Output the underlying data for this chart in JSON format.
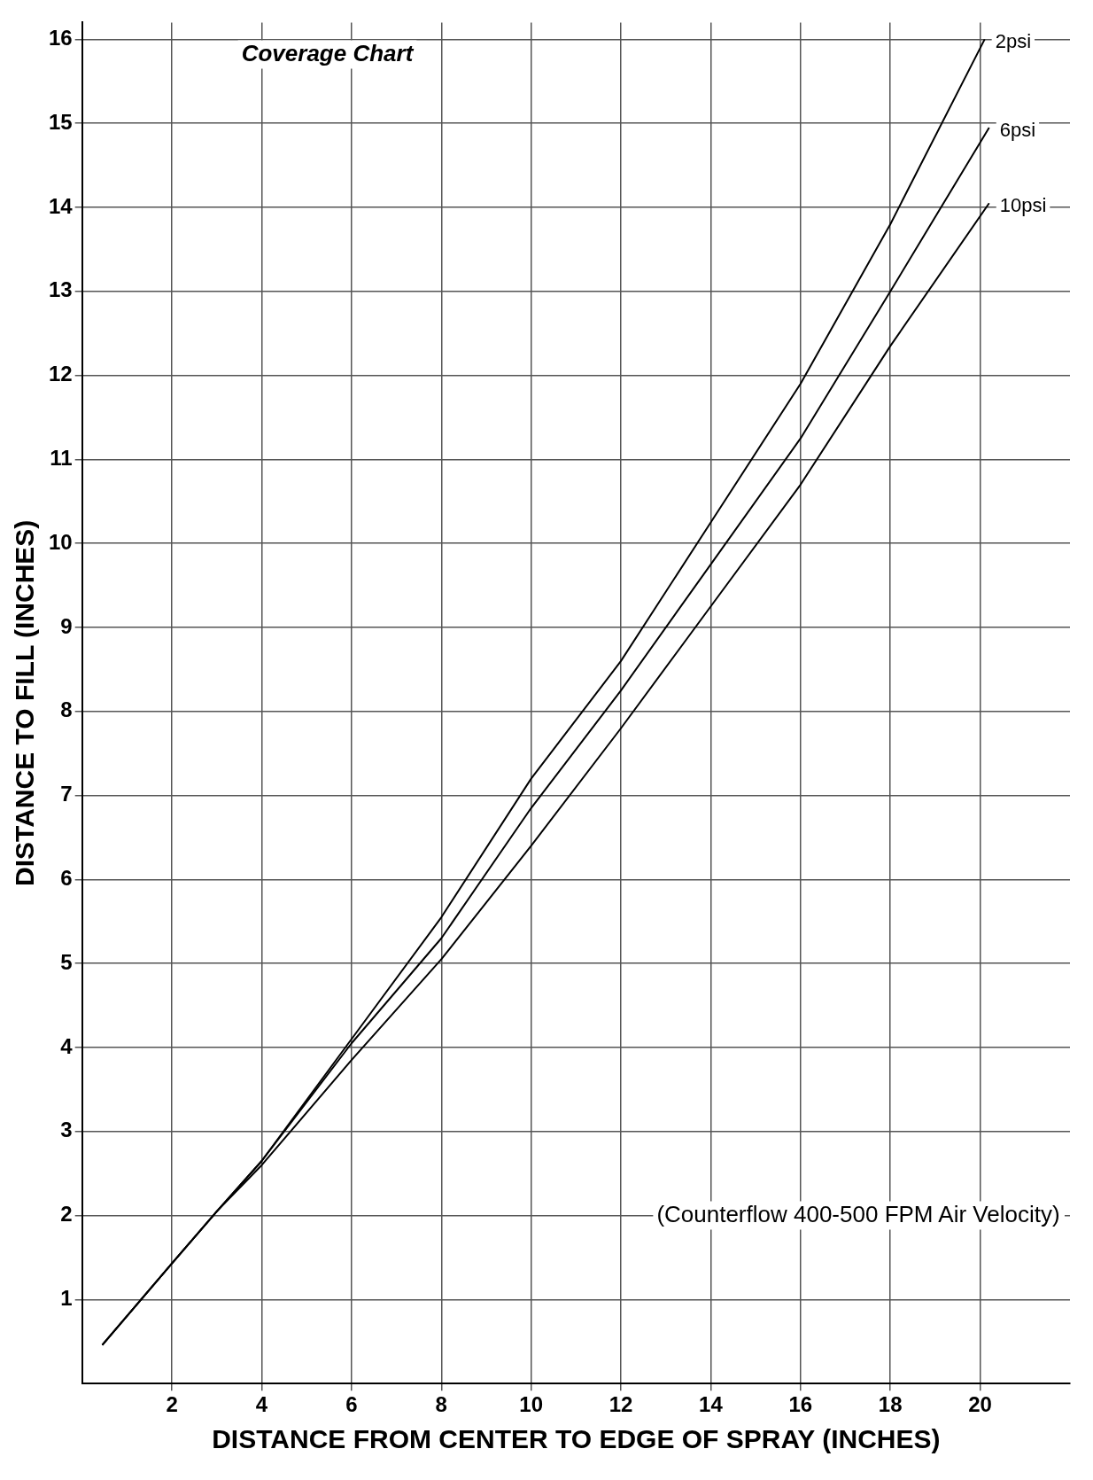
{
  "chart_data": {
    "type": "line",
    "title": "Coverage Chart",
    "xlabel": "DISTANCE FROM CENTER TO EDGE OF SPRAY (INCHES)",
    "ylabel": "DISTANCE TO FILL (INCHES)",
    "annotations": [
      "(Counterflow 400-500 FPM Air Velocity)"
    ],
    "xlim": [
      0,
      22
    ],
    "ylim": [
      0,
      16.2
    ],
    "xticks": [
      2,
      4,
      6,
      8,
      10,
      12,
      14,
      16,
      18,
      20
    ],
    "yticks": [
      1,
      2,
      3,
      4,
      5,
      6,
      7,
      8,
      9,
      10,
      11,
      12,
      13,
      14,
      15,
      16
    ],
    "grid": true,
    "legend": false,
    "marker": "none",
    "line_style": "solid",
    "series": [
      {
        "name": "2psi",
        "color": "#000000",
        "x": [
          0.45,
          2,
          3,
          4,
          6,
          8,
          10,
          12,
          14,
          16,
          18,
          20.1
        ],
        "values": [
          0.46,
          1.43,
          2.05,
          2.65,
          4.1,
          5.55,
          7.2,
          8.6,
          10.25,
          11.9,
          13.8,
          16.0
        ]
      },
      {
        "name": "6psi",
        "color": "#000000",
        "x": [
          0.45,
          2,
          3,
          4,
          6,
          8,
          10,
          12,
          14,
          16,
          18,
          20.2
        ],
        "values": [
          0.46,
          1.43,
          2.05,
          2.65,
          4.05,
          5.3,
          6.85,
          8.25,
          9.75,
          11.25,
          13.0,
          14.95
        ]
      },
      {
        "name": "10psi",
        "color": "#000000",
        "x": [
          0.45,
          2,
          3,
          4,
          6,
          8,
          10,
          12,
          14,
          16,
          18,
          20.2
        ],
        "values": [
          0.46,
          1.43,
          2.05,
          2.6,
          3.85,
          5.05,
          6.4,
          7.8,
          9.25,
          10.7,
          12.35,
          14.05
        ]
      }
    ]
  }
}
